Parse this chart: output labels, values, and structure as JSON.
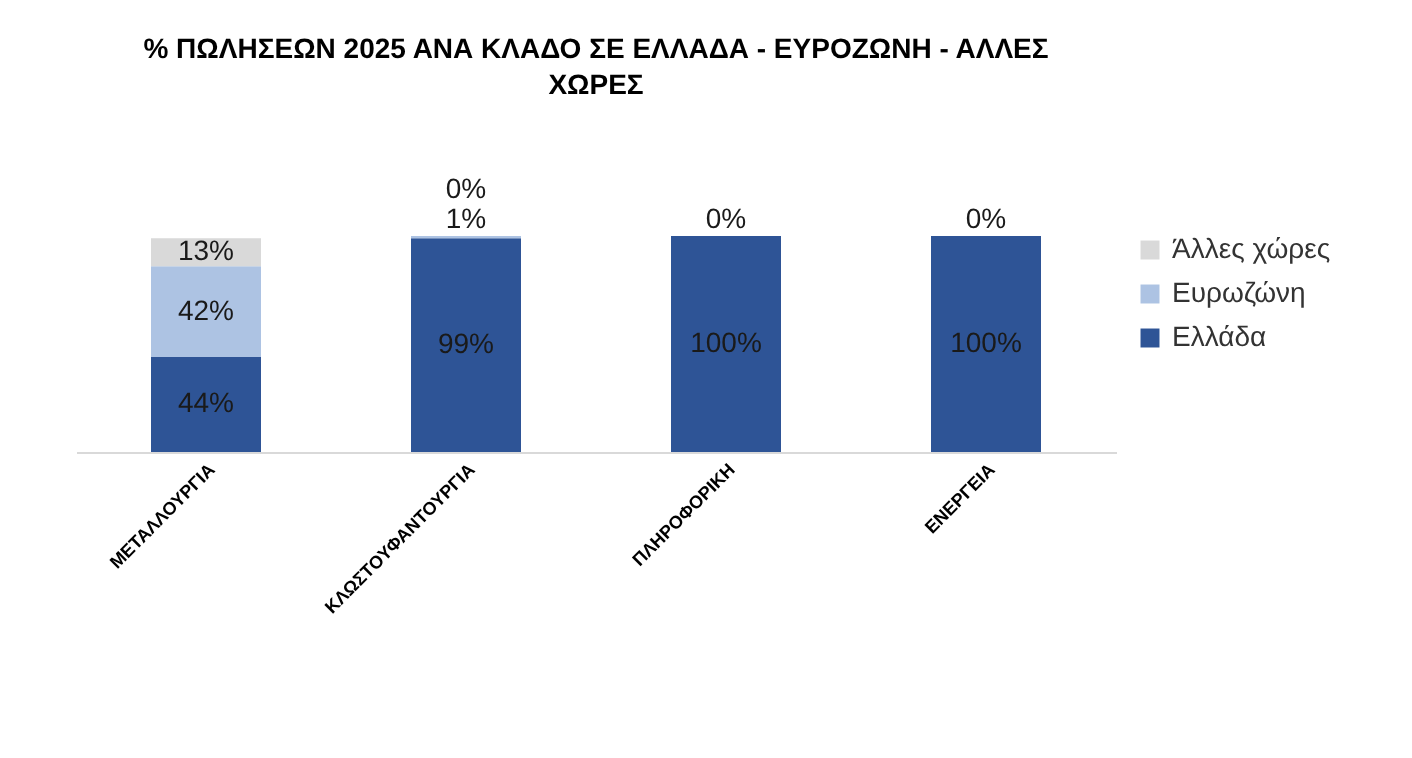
{
  "chart_data": {
    "type": "bar",
    "stacked": true,
    "title": "% ΠΩΛΗΣΕΩΝ 2025 ΑΝΑ ΚΛΑΔΟ ΣΕ ΕΛΛΑΔΑ - ΕΥΡΟΖΩΝΗ - ΑΛΛΕΣ ΧΩΡΕΣ",
    "categories": [
      "ΜΕΤΑΛΛΟΥΡΓΙΑ",
      "ΚΛΩΣΤΟΥΦΑΝΤΟΥΡΓΙΑ",
      "ΠΛΗΡΟΦΟΡΙΚΗ",
      "ΕΝΕΡΓΕΙΑ"
    ],
    "series": [
      {
        "name": "Ελλάδα",
        "color": "#2e5496",
        "values": [
          44,
          99,
          100,
          100
        ],
        "value_labels": [
          "44%",
          "99%",
          "100%",
          "100%"
        ]
      },
      {
        "name": "Ευρωζώνη",
        "color": "#adc3e3",
        "values": [
          42,
          1,
          0,
          0
        ],
        "value_labels": [
          "42%",
          "1%",
          "0%",
          "0%"
        ]
      },
      {
        "name": "Άλλες χώρες",
        "color": "#d9d9d9",
        "values": [
          13,
          0,
          0,
          0
        ],
        "value_labels": [
          "13%",
          "0%",
          null,
          null
        ]
      }
    ],
    "legend": "right"
  }
}
